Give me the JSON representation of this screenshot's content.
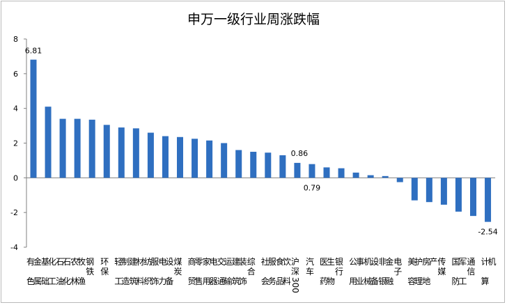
{
  "chart_data": {
    "type": "bar",
    "title": "申万一级行业周涨跌幅",
    "xlabel": "",
    "ylabel": "",
    "ylim": [
      -4,
      8
    ],
    "yticks": [
      -4,
      -2,
      0,
      2,
      4,
      6,
      8
    ],
    "grid": false,
    "legend": "none",
    "bar_color": "#2f6fc0",
    "categories": [
      "有色金属",
      "基础化工",
      "石油石化",
      "农林牧渔",
      "钢铁",
      "环保",
      "轻工制造",
      "建筑材料",
      "纺织服饰",
      "电力设备",
      "煤炭",
      "商贸零售",
      "家用电器",
      "交通运输",
      "建筑装饰",
      "综合",
      "社会服务",
      "食品饮料",
      "沪深300",
      "汽车",
      "医药生物",
      "银行",
      "公用事业",
      "机械设备",
      "非银金融",
      "电子",
      "美容护理",
      "房地产",
      "传媒",
      "国防军工",
      "通信",
      "计算机"
    ],
    "values": [
      6.81,
      4.1,
      3.4,
      3.4,
      3.35,
      3.05,
      2.9,
      2.85,
      2.6,
      2.4,
      2.35,
      2.25,
      2.15,
      2.0,
      1.6,
      1.5,
      1.45,
      1.3,
      0.86,
      0.79,
      0.6,
      0.55,
      0.3,
      0.15,
      0.1,
      -0.25,
      -1.3,
      -1.4,
      -1.55,
      -1.95,
      -2.2,
      -2.54
    ],
    "data_labels": [
      {
        "index": 0,
        "text": "6.81"
      },
      {
        "index": 18,
        "text": "0.86"
      },
      {
        "index": 19,
        "text": "0.79"
      },
      {
        "index": 31,
        "text": "-2.54"
      }
    ]
  }
}
